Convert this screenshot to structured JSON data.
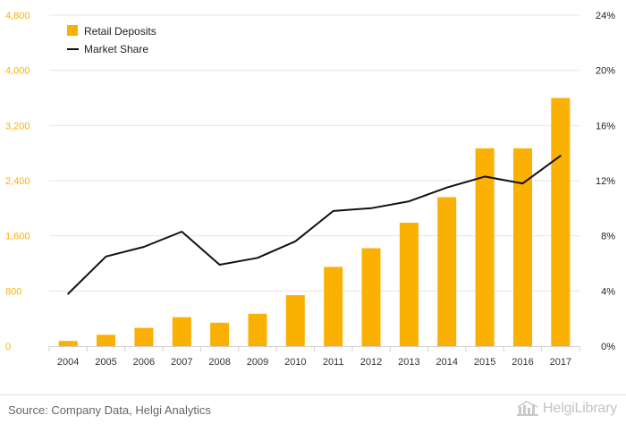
{
  "chart_data": {
    "type": "bar",
    "categories": [
      "2004",
      "2005",
      "2006",
      "2007",
      "2008",
      "2009",
      "2010",
      "2011",
      "2012",
      "2013",
      "2014",
      "2015",
      "2016",
      "2017"
    ],
    "series": [
      {
        "name": "Retail Deposits",
        "type": "bar",
        "axis": "left",
        "color": "#FBB103",
        "values": [
          75,
          165,
          265,
          420,
          340,
          470,
          740,
          1150,
          1420,
          1790,
          2160,
          2870,
          2870,
          3600
        ]
      },
      {
        "name": "Market Share",
        "type": "line",
        "axis": "right",
        "color": "#111111",
        "values": [
          3.8,
          6.5,
          7.2,
          8.3,
          5.9,
          6.4,
          7.6,
          9.8,
          10.0,
          10.5,
          11.5,
          12.3,
          11.8,
          13.8
        ]
      }
    ],
    "y_left": {
      "min": 0,
      "max": 4800,
      "ticks": [
        "0",
        "800",
        "1,600",
        "2,400",
        "3,200",
        "4,000",
        "4,800"
      ],
      "tick_values": [
        0,
        800,
        1600,
        2400,
        3200,
        4000,
        4800
      ],
      "tick_color": "#FBB103"
    },
    "y_right": {
      "min": 0,
      "max": 24,
      "ticks": [
        "0%",
        "4%",
        "8%",
        "12%",
        "16%",
        "20%",
        "24%"
      ],
      "tick_values": [
        0,
        4,
        8,
        12,
        16,
        20,
        24
      ]
    },
    "grid": true,
    "legend": "top-left",
    "title": "",
    "xlabel": "",
    "ylabel": ""
  },
  "footer": {
    "source": "Source: Company Data, Helgi Analytics",
    "brand": "HelgiLibrary"
  }
}
